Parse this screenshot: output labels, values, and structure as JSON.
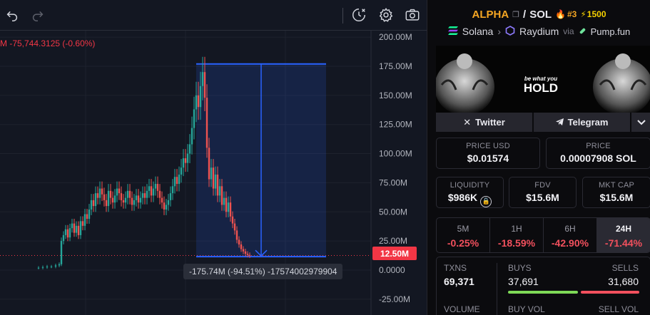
{
  "chart": {
    "ohlc_change": "M -75,744.3125 (-0.60%)",
    "y_axis_ticks": [
      "200.00M",
      "175.00M",
      "150.00M",
      "125.00M",
      "100.00M",
      "75.00M",
      "50.00M",
      "25.00M",
      "0.0000",
      "-25.00M"
    ],
    "current_price_tag": "12.50M",
    "measure_label": "-175.74M (-94.51%) -17574002979904",
    "colors": {
      "up": "#26a69a",
      "down": "#ef5350",
      "measure": "#2962ff"
    }
  },
  "toolbar": {
    "undo_icon": "undo-icon",
    "redo_icon": "redo-icon",
    "replay_icon": "replay-icon",
    "settings_icon": "gear-icon",
    "snapshot_icon": "camera-icon"
  },
  "pair": {
    "base": "ALPHA",
    "slash": "/",
    "quote": "SOL",
    "rank": "#3",
    "boosts": "1500",
    "chain": "Solana",
    "dex": "Raydium",
    "via": "via",
    "launchpad": "Pump.fun"
  },
  "banner": {
    "line1": "be what you",
    "line2": "HOLD"
  },
  "socials": {
    "twitter": "Twitter",
    "telegram": "Telegram"
  },
  "stats": {
    "price_usd_label": "PRICE USD",
    "price_usd": "$0.01574",
    "price_native_label": "PRICE",
    "price_native": "0.00007908 SOL",
    "liquidity_label": "LIQUIDITY",
    "liquidity": "$986K",
    "fdv_label": "FDV",
    "fdv": "$15.6M",
    "mcap_label": "MKT CAP",
    "mcap": "$15.6M"
  },
  "periods": [
    {
      "name": "5M",
      "change": "-0.25%"
    },
    {
      "name": "1H",
      "change": "-18.59%"
    },
    {
      "name": "6H",
      "change": "-42.90%"
    },
    {
      "name": "24H",
      "change": "-71.44%"
    }
  ],
  "txns": {
    "txns_label": "TXNS",
    "txns": "69,371",
    "buys_label": "BUYS",
    "buys": "37,691",
    "sells_label": "SELLS",
    "sells": "31,680",
    "volume_label": "VOLUME",
    "buy_vol_label": "BUY VOL",
    "sell_vol_label": "SELL VOL"
  }
}
